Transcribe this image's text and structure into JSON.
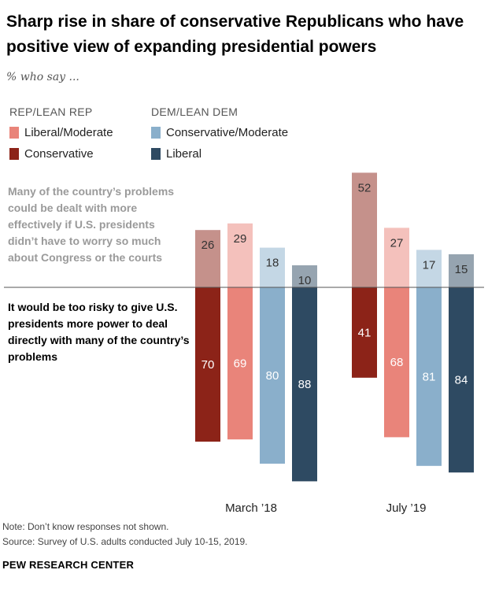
{
  "header": {
    "title": "Sharp rise in share of conservative Republicans who have positive view of expanding presidential powers",
    "subtitle": "% who say ..."
  },
  "legend": {
    "rep_title": "REP/LEAN REP",
    "dem_title": "DEM/LEAN DEM",
    "items": [
      {
        "label": "Liberal/Moderate",
        "color": "#e9847a"
      },
      {
        "label": "Conservative",
        "color": "#8c2318"
      },
      {
        "label": "Conservative/Moderate",
        "color": "#8aafcb"
      },
      {
        "label": "Liberal",
        "color": "#2e4a62"
      }
    ]
  },
  "annotations": {
    "top_statement": "Many of the country’s problems could be dealt with more effectively if U.S. presidents didn’t have to worry so much about Congress or the courts",
    "bottom_statement": "It would be too risky to give U.S. presidents more power to deal directly with many of the country’s problems"
  },
  "chart_data": {
    "type": "bar",
    "categories": [
      "March ’18",
      "July ’19"
    ],
    "series": [
      {
        "name": "Conservative",
        "group": "REP/LEAN REP",
        "color": "#8c2318",
        "positive": [
          26,
          52
        ],
        "risky": [
          70,
          41
        ]
      },
      {
        "name": "Liberal/Moderate",
        "group": "REP/LEAN REP",
        "color": "#e9847a",
        "positive": [
          29,
          27
        ],
        "risky": [
          69,
          68
        ]
      },
      {
        "name": "Conservative/Moderate",
        "group": "DEM/LEAN DEM",
        "color": "#8aafcb",
        "positive": [
          18,
          17
        ],
        "risky": [
          80,
          81
        ]
      },
      {
        "name": "Liberal",
        "group": "DEM/LEAN DEM",
        "color": "#2e4a62",
        "positive": [
          10,
          15
        ],
        "risky": [
          88,
          84
        ]
      }
    ]
  },
  "footer": {
    "note": "Note: Don’t know responses not shown.",
    "source": "Source: Survey of U.S. adults conducted July 10-15, 2019.",
    "brand": "PEW RESEARCH CENTER"
  }
}
